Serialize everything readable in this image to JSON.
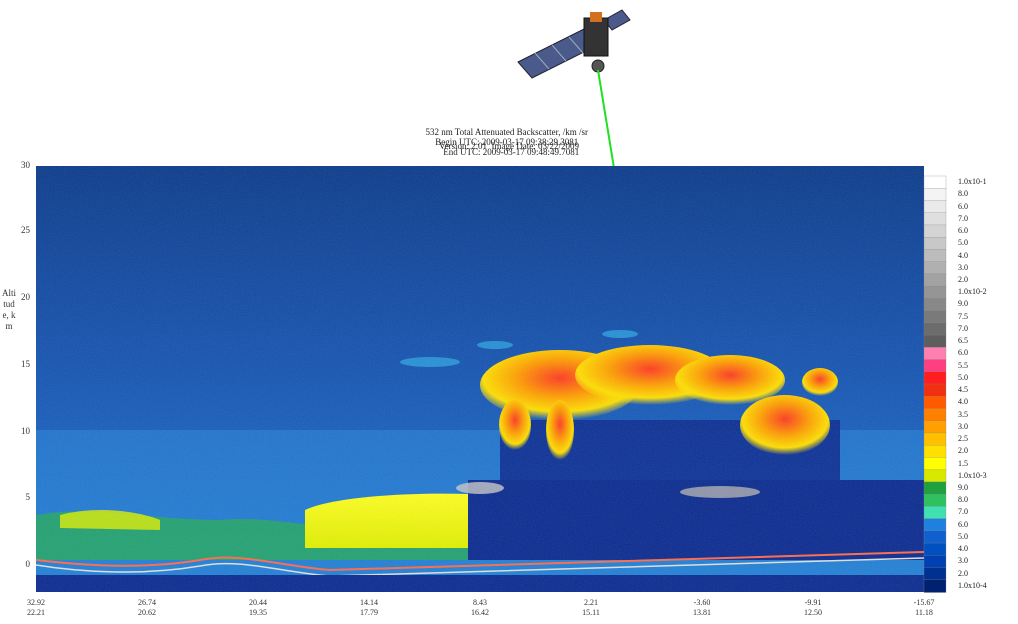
{
  "header": {
    "title": "532 nm Total Attenuated Backscatter, /km /sr",
    "begin_label": "Begin UTC: 2009-03-17 09:38:29.3081",
    "end_label": "End UTC: 2009-03-17 09:48:49.7081",
    "version_label": "Version: 2.01  Image Date: 03/22/2009"
  },
  "chart_data": {
    "type": "heatmap",
    "ylabel": "Altitude, km",
    "ylim": [
      -2,
      30
    ],
    "yticks": [
      "30",
      "25",
      "20",
      "15",
      "10",
      "5",
      "0"
    ],
    "xticks": [
      {
        "lat": "32.92",
        "lon": "22.21"
      },
      {
        "lat": "26.74",
        "lon": "20.62"
      },
      {
        "lat": "20.44",
        "lon": "19.35"
      },
      {
        "lat": "14.14",
        "lon": "17.79"
      },
      {
        "lat": "8.43",
        "lon": "16.42"
      },
      {
        "lat": "2.21",
        "lon": "15.11"
      },
      {
        "lat": "-3.60",
        "lon": "13.81"
      },
      {
        "lat": "-9.91",
        "lon": "12.50"
      },
      {
        "lat": "-15.67",
        "lon": "11.18"
      }
    ],
    "colorbar": {
      "labels": [
        "1.0x10-1",
        "8.0",
        "6.0",
        "7.0",
        "6.0",
        "5.0",
        "4.0",
        "3.0",
        "2.0",
        "1.0x10-2",
        "9.0",
        "7.5",
        "7.0",
        "6.5",
        "6.0",
        "5.5",
        "5.0",
        "4.5",
        "4.0",
        "3.5",
        "3.0",
        "2.5",
        "2.0",
        "1.5",
        "1.0x10-3",
        "9.0",
        "8.0",
        "7.0",
        "6.0",
        "5.0",
        "4.0",
        "3.0",
        "2.0",
        "1.0x10-4"
      ],
      "colors": [
        "#ffffff",
        "#f4f4f4",
        "#eaeaea",
        "#dfdfdf",
        "#d4d4d4",
        "#c8c8c8",
        "#bcbcbc",
        "#b0b0b0",
        "#a2a2a2",
        "#959595",
        "#888888",
        "#7a7a7a",
        "#6c6c6c",
        "#5e5e5e",
        "#ff80b0",
        "#ff4080",
        "#ff1e1e",
        "#f03010",
        "#ff5a00",
        "#ff8000",
        "#ffa000",
        "#ffc000",
        "#ffe000",
        "#ffff00",
        "#d8e800",
        "#20a040",
        "#30c060",
        "#40e0b0",
        "#2080e0",
        "#1060d0",
        "#0050c0",
        "#0040b0",
        "#003090",
        "#002070"
      ]
    },
    "series": [
      {
        "type": "cloud-layer",
        "x_range": [
          "8.43",
          "-9.91"
        ],
        "altitude_km": [
          10,
          17
        ],
        "intensity": "1.0x10-2 to 6.0x10-3"
      },
      {
        "type": "aerosol-layer",
        "x_range": [
          "14.14",
          "8.43"
        ],
        "altitude_km": [
          1,
          4
        ],
        "intensity": "2.0x10-3"
      },
      {
        "type": "surface",
        "altitude_km": 0
      }
    ]
  }
}
